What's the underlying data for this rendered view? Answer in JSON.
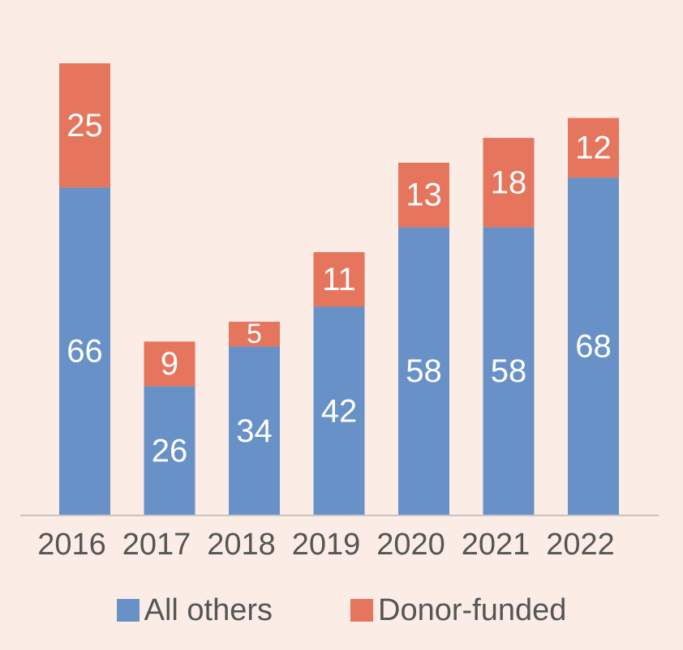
{
  "chart_data": {
    "type": "bar",
    "stacked": true,
    "categories": [
      "2016",
      "2017",
      "2018",
      "2019",
      "2020",
      "2021",
      "2022"
    ],
    "series": [
      {
        "name": "All others",
        "color": "#6891c8",
        "values": [
          66,
          26,
          34,
          42,
          58,
          58,
          68
        ]
      },
      {
        "name": "Donor-funded",
        "color": "#e5755c",
        "values": [
          25,
          9,
          5,
          11,
          13,
          18,
          12
        ]
      }
    ],
    "title": "",
    "xlabel": "",
    "ylabel": "",
    "ylim": [
      0,
      92
    ],
    "grid": false,
    "y_axis_shown": false,
    "data_labels": true,
    "legend_position": "bottom"
  }
}
